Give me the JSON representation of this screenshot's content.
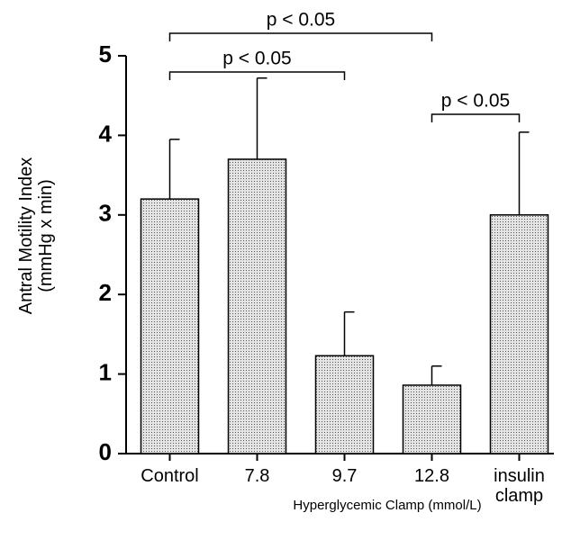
{
  "chart_data": {
    "type": "bar",
    "y_label": "Antral Motility Index (mmHg x min)",
    "x_label": "Hyperglycemic Clamp (mmol/L)",
    "categories": [
      "Control",
      "7.8",
      "9.7",
      "12.8",
      "insulin clamp"
    ],
    "values": [
      3.2,
      3.7,
      1.23,
      0.86,
      3.0
    ],
    "errors": [
      0.75,
      1.02,
      0.55,
      0.24,
      1.04
    ],
    "color": "#d4d4d4",
    "ylim": [
      0,
      5
    ],
    "yticks": [
      0,
      1,
      2,
      3,
      4,
      5
    ],
    "annotations": [
      {
        "text": "p < 0.05",
        "from": "Control",
        "to": "12.8"
      },
      {
        "text": "p < 0.05",
        "from": "Control",
        "to": "9.7"
      },
      {
        "text": "p < 0.05",
        "from": "12.8",
        "to": "insulin clamp"
      }
    ]
  }
}
